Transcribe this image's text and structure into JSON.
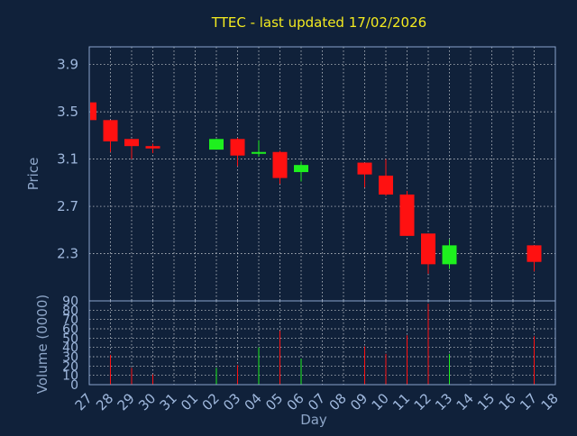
{
  "chart_data": {
    "type": "candlestick",
    "title": "TTEC - last updated 17/02/2026",
    "xlabel": "Day",
    "price": {
      "ylabel": "Price",
      "ylim": [
        1.9,
        4.05
      ],
      "yticks": [
        "3.9",
        "3.5",
        "3.1",
        "2.7",
        "2.3"
      ],
      "ytick_values": [
        3.9,
        3.5,
        3.1,
        2.7,
        2.3
      ],
      "up_color": "#1ef01e",
      "down_color": "#ff1111"
    },
    "volume": {
      "ylabel": "Volume (0000)",
      "ylim": [
        0,
        90
      ],
      "yticks": [
        "90",
        "80",
        "70",
        "60",
        "50",
        "40",
        "30",
        "20",
        "10",
        "0"
      ],
      "ytick_values": [
        90,
        80,
        70,
        60,
        50,
        40,
        30,
        20,
        10,
        0
      ]
    },
    "x_ticks": [
      "27",
      "28",
      "29",
      "30",
      "31",
      "01",
      "02",
      "03",
      "04",
      "05",
      "06",
      "07",
      "08",
      "09",
      "10",
      "11",
      "12",
      "13",
      "14",
      "15",
      "16",
      "17",
      "18"
    ],
    "candles": [
      {
        "day": "27",
        "open": 3.58,
        "close": 3.43,
        "high": 3.59,
        "low": 3.42,
        "volume": 0
      },
      {
        "day": "28",
        "open": 3.43,
        "close": 3.25,
        "high": 3.43,
        "low": 3.16,
        "volume": 32
      },
      {
        "day": "29",
        "open": 3.27,
        "close": 3.21,
        "high": 3.27,
        "low": 3.1,
        "volume": 18
      },
      {
        "day": "30",
        "open": 3.21,
        "close": 3.19,
        "high": 3.23,
        "low": 3.15,
        "volume": 11
      },
      {
        "day": "02",
        "open": 3.18,
        "close": 3.27,
        "high": 3.27,
        "low": 3.18,
        "volume": 18
      },
      {
        "day": "03",
        "open": 3.27,
        "close": 3.13,
        "high": 3.28,
        "low": 3.04,
        "volume": 21
      },
      {
        "day": "04",
        "open": 3.15,
        "close": 3.16,
        "high": 3.26,
        "low": 3.12,
        "volume": 40
      },
      {
        "day": "05",
        "open": 3.16,
        "close": 2.94,
        "high": 3.17,
        "low": 2.89,
        "volume": 58
      },
      {
        "day": "06",
        "open": 2.99,
        "close": 3.05,
        "high": 3.08,
        "low": 2.91,
        "volume": 28
      },
      {
        "day": "09",
        "open": 3.07,
        "close": 2.97,
        "high": 3.07,
        "low": 2.86,
        "volume": 41
      },
      {
        "day": "10",
        "open": 2.96,
        "close": 2.8,
        "high": 3.1,
        "low": 2.79,
        "volume": 33
      },
      {
        "day": "11",
        "open": 2.8,
        "close": 2.45,
        "high": 2.83,
        "low": 2.45,
        "volume": 53
      },
      {
        "day": "12",
        "open": 2.47,
        "close": 2.21,
        "high": 2.47,
        "low": 2.13,
        "volume": 87
      },
      {
        "day": "13",
        "open": 2.21,
        "close": 2.37,
        "high": 2.42,
        "low": 2.17,
        "volume": 33
      },
      {
        "day": "17",
        "open": 2.37,
        "close": 2.23,
        "high": 2.37,
        "low": 2.15,
        "volume": 52
      }
    ]
  }
}
